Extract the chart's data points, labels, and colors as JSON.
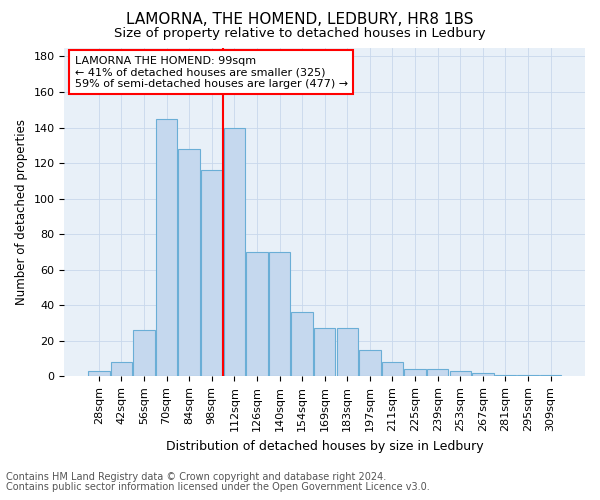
{
  "title": "LAMORNA, THE HOMEND, LEDBURY, HR8 1BS",
  "subtitle": "Size of property relative to detached houses in Ledbury",
  "xlabel": "Distribution of detached houses by size in Ledbury",
  "ylabel": "Number of detached properties",
  "footnote1": "Contains HM Land Registry data © Crown copyright and database right 2024.",
  "footnote2": "Contains public sector information licensed under the Open Government Licence v3.0.",
  "bar_labels": [
    "28sqm",
    "42sqm",
    "56sqm",
    "70sqm",
    "84sqm",
    "98sqm",
    "112sqm",
    "126sqm",
    "140sqm",
    "154sqm",
    "169sqm",
    "183sqm",
    "197sqm",
    "211sqm",
    "225sqm",
    "239sqm",
    "253sqm",
    "267sqm",
    "281sqm",
    "295sqm",
    "309sqm"
  ],
  "bar_values": [
    3,
    8,
    26,
    145,
    128,
    116,
    140,
    70,
    70,
    36,
    27,
    27,
    15,
    8,
    4,
    4,
    3,
    2,
    1,
    1,
    1
  ],
  "bar_color": "#c5d8ee",
  "bar_edge_color": "#6aaed6",
  "vline_x": 5.5,
  "vline_color": "red",
  "annotation_text": "LAMORNA THE HOMEND: 99sqm\n← 41% of detached houses are smaller (325)\n59% of semi-detached houses are larger (477) →",
  "annotation_box_color": "white",
  "annotation_box_edge": "red",
  "ylim": [
    0,
    185
  ],
  "yticks": [
    0,
    20,
    40,
    60,
    80,
    100,
    120,
    140,
    160,
    180
  ],
  "grid_color": "#c8d8ec",
  "background_color": "#e8f0f8",
  "title_fontsize": 11,
  "subtitle_fontsize": 9.5,
  "ylabel_fontsize": 8.5,
  "xlabel_fontsize": 9,
  "tick_fontsize": 8,
  "annot_fontsize": 8,
  "footnote_fontsize": 7
}
